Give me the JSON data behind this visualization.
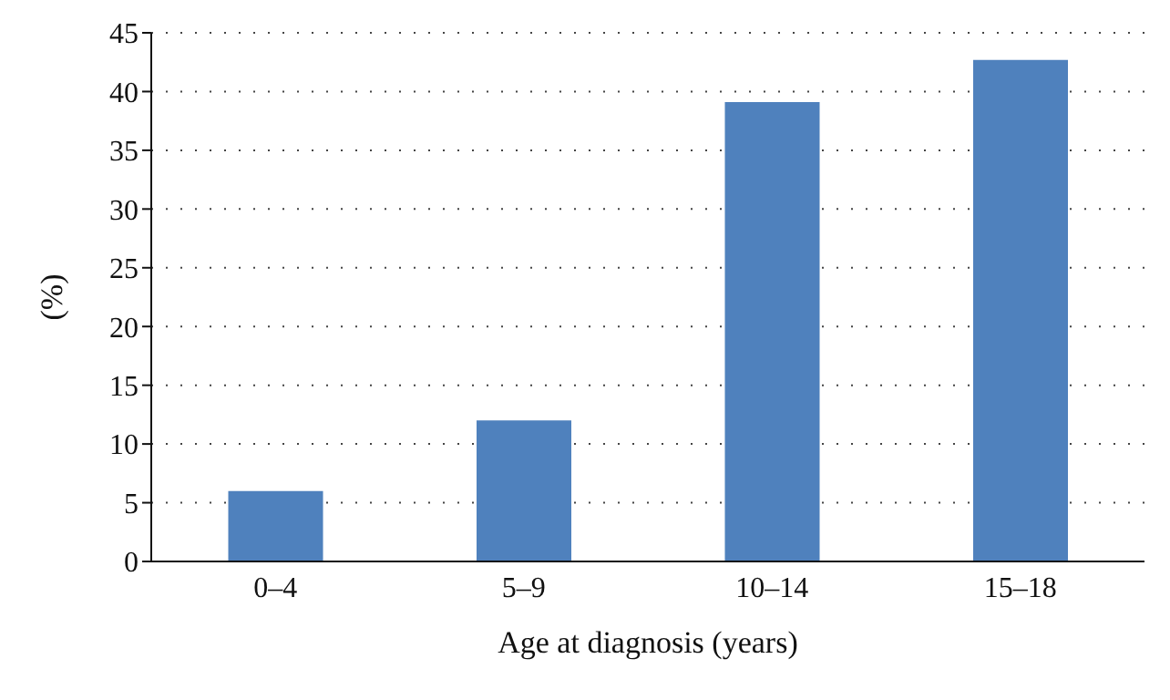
{
  "chart_data": {
    "type": "bar",
    "xlabel": "Age at diagnosis (years)",
    "ylabel": "(%)",
    "categories": [
      "0–4",
      "5–9",
      "10–14",
      "15–18"
    ],
    "values": [
      6.0,
      12.0,
      39.1,
      42.7
    ],
    "color": "#4f81bd",
    "ylim": [
      0,
      45
    ],
    "yticks": [
      0,
      5,
      10,
      15,
      20,
      25,
      30,
      35,
      40,
      45
    ],
    "grid": "y"
  }
}
